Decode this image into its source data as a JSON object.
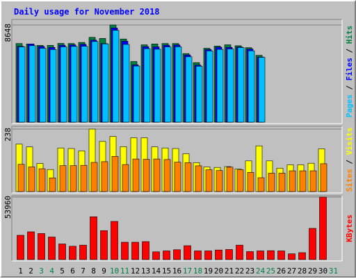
{
  "chart_data": {
    "type": "bar",
    "title": "Daily usage for November 2018",
    "categories": [
      "1",
      "2",
      "3",
      "4",
      "5",
      "6",
      "7",
      "8",
      "9",
      "10",
      "11",
      "12",
      "13",
      "14",
      "15",
      "16",
      "17",
      "18",
      "19",
      "20",
      "21",
      "22",
      "23",
      "24",
      "25",
      "26",
      "27",
      "28",
      "29",
      "30",
      "31"
    ],
    "weekend_days": [
      "3",
      "4",
      "10",
      "11",
      "17",
      "18",
      "24",
      "25",
      "31"
    ],
    "panels": [
      {
        "id": "hits",
        "max_label": "8648",
        "ymax": 8648,
        "axis_labels": [
          {
            "text": "Pages",
            "color": "#00c0ff"
          },
          {
            "text": " / ",
            "color": "#000000"
          },
          {
            "text": "Files",
            "color": "#0000ff"
          },
          {
            "text": " / ",
            "color": "#000000"
          },
          {
            "text": "Hits",
            "color": "#008040"
          }
        ],
        "series": [
          {
            "name": "Hits",
            "color": "#008040",
            "values": [
              7000,
              6960,
              6830,
              6830,
              7010,
              7000,
              7100,
              7550,
              7450,
              8648,
              7400,
              5400,
              6880,
              6960,
              7000,
              7000,
              6100,
              5300,
              6580,
              6770,
              6890,
              6800,
              6630,
              5950,
              0,
              0,
              0,
              0,
              0,
              0,
              0
            ]
          },
          {
            "name": "Files",
            "color": "#0000ff",
            "values": [
              6750,
              6960,
              6740,
              6650,
              6850,
              6880,
              6930,
              7300,
              7000,
              8380,
              7200,
              5100,
              6720,
              6700,
              6850,
              6870,
              5980,
              5080,
              6460,
              6670,
              6660,
              6690,
              6510,
              5800,
              0,
              0,
              0,
              0,
              0,
              0,
              0
            ]
          },
          {
            "name": "Pages",
            "color": "#00c0ff",
            "values": [
              6700,
              6810,
              6580,
              6470,
              6700,
              6740,
              6750,
              7180,
              6970,
              8170,
              6920,
              5000,
              6540,
              6490,
              6690,
              6710,
              5820,
              4980,
              6340,
              6480,
              6510,
              6640,
              6350,
              5770,
              0,
              0,
              0,
              0,
              0,
              0,
              0
            ]
          }
        ]
      },
      {
        "id": "visits",
        "max_label": "238",
        "ymax": 238,
        "axis_labels": [
          {
            "text": "Sites",
            "color": "#ff8000"
          },
          {
            "text": " / ",
            "color": "#000000"
          },
          {
            "text": "Visits",
            "color": "#ffff00"
          }
        ],
        "series": [
          {
            "name": "Visits",
            "color": "#ffff00",
            "values": [
              181,
              170,
              107,
              84,
              166,
              164,
              155,
              238,
              191,
              210,
              171,
              205,
              205,
              170,
              166,
              164,
              144,
              110,
              94,
              92,
              95,
              86,
              117,
              174,
              117,
              89,
              102,
              102,
              108,
              163,
              0
            ]
          },
          {
            "name": "Sites",
            "color": "#ff8000",
            "values": [
              104,
              94,
              87,
              52,
              99,
              99,
              100,
              111,
              114,
              134,
              103,
              124,
              123,
              124,
              122,
              112,
              110,
              98,
              83,
              80,
              93,
              83,
              73,
              53,
              70,
              70,
              79,
              79,
              79,
              106,
              0
            ]
          }
        ]
      },
      {
        "id": "kbytes",
        "max_label": "53960",
        "ymax": 53960,
        "axis_labels": [
          {
            "text": "KBytes",
            "color": "#ff0000"
          }
        ],
        "series": [
          {
            "name": "KBytes",
            "color": "#ff0000",
            "values": [
              21000,
              24000,
              22500,
              19500,
              13500,
              11500,
              12500,
              37000,
              25000,
              33000,
              15000,
              15000,
              15500,
              6700,
              7500,
              8500,
              12000,
              7500,
              7500,
              8300,
              8700,
              12500,
              6900,
              7500,
              7700,
              7500,
              5000,
              6000,
              27000,
              53960,
              0
            ]
          }
        ]
      }
    ],
    "x_label_color": "#000000",
    "weekend_label_color": "#008040",
    "legend": "right, vertical"
  }
}
